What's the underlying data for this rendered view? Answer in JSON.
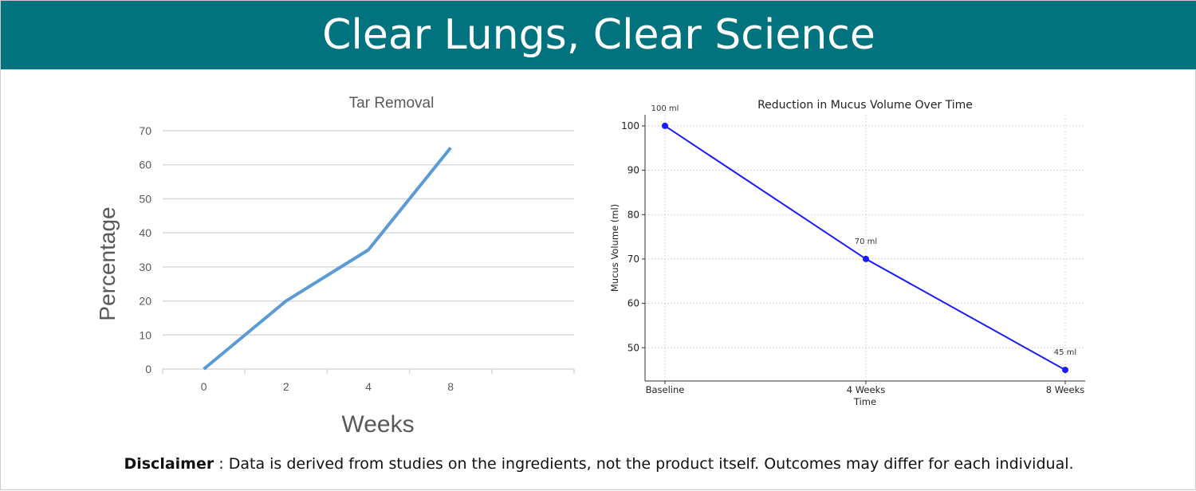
{
  "header": {
    "title": "Clear Lungs, Clear Science"
  },
  "disclaimer": {
    "label": "Disclaimer",
    "separator": " : ",
    "text": "Data is derived from studies on the ingredients, not the product itself. Outcomes may differ for each individual."
  },
  "colors": {
    "header_bg": "#00737f",
    "left_line": "#5b9bd5",
    "right_line": "#1a1aff"
  },
  "chart_data": [
    {
      "type": "line",
      "title": "Tar Removal",
      "xlabel": "Weeks",
      "ylabel": "Percentage",
      "categories": [
        "0",
        "2",
        "4",
        "8"
      ],
      "values": [
        0,
        20,
        35,
        65
      ],
      "ylim": [
        0,
        70
      ],
      "yticks": [
        0,
        10,
        20,
        30,
        40,
        50,
        60,
        70
      ],
      "grid": true
    },
    {
      "type": "line",
      "title": "Reduction in Mucus Volume Over Time",
      "xlabel": "Time",
      "ylabel": "Mucus Volume (ml)",
      "categories": [
        "Baseline",
        "4 Weeks",
        "8 Weeks"
      ],
      "values": [
        100,
        70,
        45
      ],
      "data_labels": [
        "100 ml",
        "70 ml",
        "45 ml"
      ],
      "ylim": [
        42.5,
        102.5
      ],
      "yticks": [
        50,
        60,
        70,
        80,
        90,
        100
      ],
      "grid": true
    }
  ]
}
